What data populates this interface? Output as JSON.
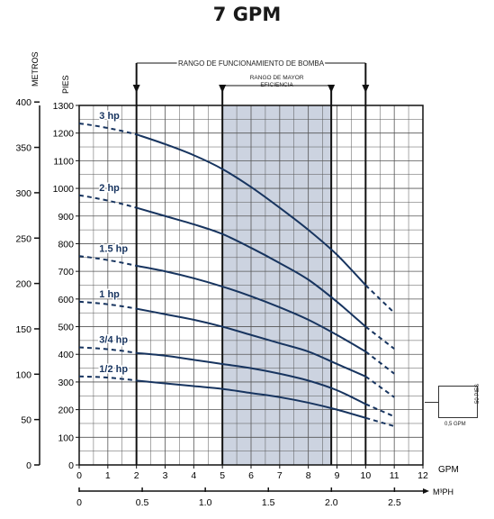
{
  "page_title": "7 GPM",
  "unit_key": {
    "pies": "50 PIES",
    "gpm": "0,5 GPM"
  },
  "chart_data": {
    "type": "line",
    "title": "7 GPM",
    "y_left_label": "METROS",
    "y_right_label": "PIES",
    "x_label": "GPM",
    "x2_label": "M³PH",
    "y_pies_range": [
      0,
      1300
    ],
    "y_pies_ticks": [
      "0",
      "100",
      "200",
      "300",
      "400",
      "500",
      "600",
      "700",
      "800",
      "900",
      "1000",
      "1100",
      "1200",
      "1300"
    ],
    "y_metros_ticks": [
      "0",
      "50",
      "100",
      "150",
      "200",
      "250",
      "300",
      "350",
      "400"
    ],
    "y_metros_values": [
      0,
      50,
      100,
      150,
      200,
      250,
      300,
      350,
      400
    ],
    "x_gpm_range": [
      0,
      12
    ],
    "x_gpm_ticks": [
      "0",
      "1",
      "2",
      "3",
      "4",
      "5",
      "6",
      "7",
      "8",
      "9",
      "10",
      "11",
      "12"
    ],
    "x_m3ph_ticks": [
      "0",
      "0.5",
      "1.0",
      "1.5",
      "2.0",
      "2.5"
    ],
    "x_m3ph_values": [
      0,
      0.5,
      1.0,
      1.5,
      2.0,
      2.5
    ],
    "grid": true,
    "operating_range": {
      "label": "RANGO DE FUNCIONAMIENTO DE BOMBA",
      "gpm": [
        2,
        10
      ]
    },
    "efficiency_range": {
      "label": "RANGO DE MAYOR EFICIENCIA",
      "gpm": [
        5,
        8.8
      ]
    },
    "series": [
      {
        "name": "3 hp",
        "dashed_start": [
          0,
          1235
        ],
        "x": [
          2,
          3,
          4,
          5,
          6,
          7,
          8,
          9,
          10
        ],
        "y": [
          1195,
          1160,
          1120,
          1070,
          1005,
          930,
          850,
          760,
          650
        ],
        "dashed_end": [
          11,
          550
        ]
      },
      {
        "name": "2 hp",
        "dashed_start": [
          0,
          975
        ],
        "x": [
          2,
          3,
          4,
          5,
          6,
          7,
          8,
          9,
          10
        ],
        "y": [
          930,
          900,
          870,
          835,
          785,
          730,
          670,
          590,
          500
        ],
        "dashed_end": [
          11,
          420
        ]
      },
      {
        "name": "1.5 hp",
        "dashed_start": [
          0,
          755
        ],
        "x": [
          2,
          3,
          4,
          5,
          6,
          7,
          8,
          9,
          10
        ],
        "y": [
          720,
          700,
          675,
          645,
          610,
          570,
          525,
          470,
          410
        ],
        "dashed_end": [
          11,
          330
        ]
      },
      {
        "name": "1 hp",
        "dashed_start": [
          0,
          590
        ],
        "x": [
          2,
          3,
          4,
          5,
          6,
          7,
          8,
          9,
          10
        ],
        "y": [
          565,
          545,
          525,
          500,
          470,
          440,
          410,
          365,
          320
        ],
        "dashed_end": [
          11,
          245
        ]
      },
      {
        "name": "3/4 hp",
        "dashed_start": [
          0,
          425
        ],
        "x": [
          2,
          3,
          4,
          5,
          6,
          7,
          8,
          9,
          10
        ],
        "y": [
          405,
          395,
          380,
          365,
          350,
          330,
          305,
          270,
          220
        ],
        "dashed_end": [
          11,
          175
        ]
      },
      {
        "name": "1/2 hp",
        "dashed_start": [
          0,
          320
        ],
        "x": [
          2,
          3,
          4,
          5,
          6,
          7,
          8,
          9,
          10
        ],
        "y": [
          305,
          295,
          285,
          275,
          260,
          245,
          225,
          200,
          170
        ],
        "dashed_end": [
          11,
          140
        ]
      }
    ],
    "colors": {
      "curve": "#17345f",
      "efficiency_band": "#ccd3e0",
      "grid": "#555555"
    }
  }
}
